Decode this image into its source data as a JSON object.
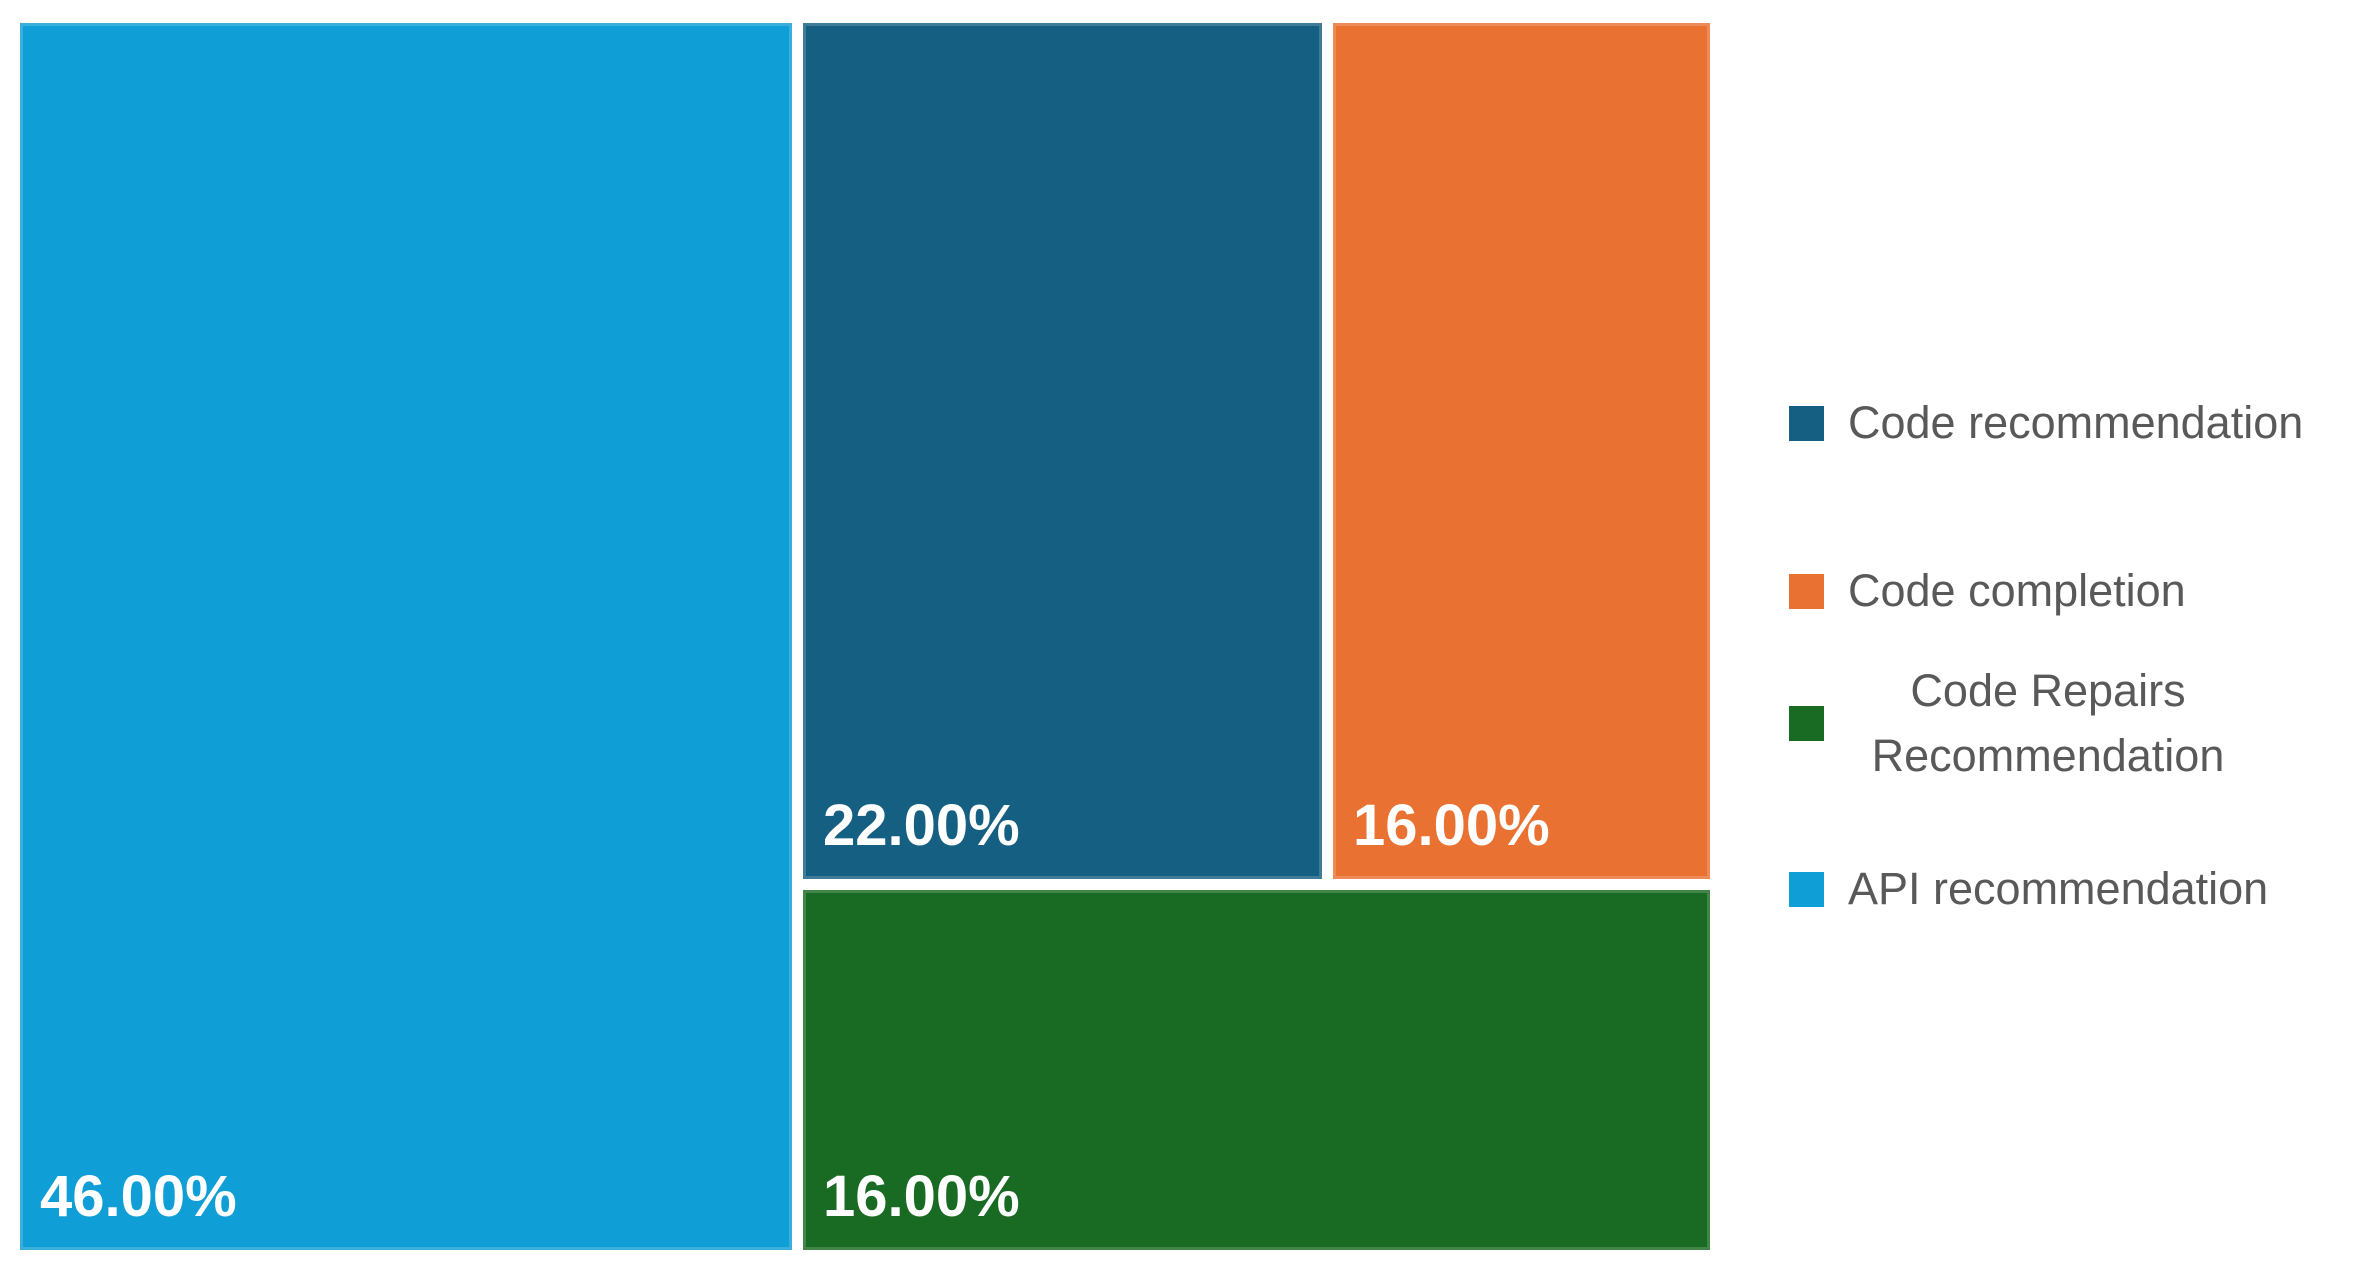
{
  "chart_data": {
    "type": "treemap",
    "title": "",
    "items": [
      {
        "label": "API recommendation",
        "value": 46,
        "display": "46.00%",
        "color": "#0F9ED5"
      },
      {
        "label": "Code recommendation",
        "value": 22,
        "display": "22.00%",
        "color": "#156082"
      },
      {
        "label": "Code completion",
        "value": 16,
        "display": "16.00%",
        "color": "#E97132"
      },
      {
        "label": "Code Repairs Recommendation",
        "value": 16,
        "display": "16.00%",
        "color": "#196B24"
      }
    ],
    "value_unit": "percent",
    "data_labels": "inside-bottom-left",
    "legend_position": "right"
  },
  "legend": {
    "items": [
      {
        "label": "Code recommendation",
        "color": "#156082"
      },
      {
        "label": "Code completion",
        "color": "#E97132"
      },
      {
        "label": "Code Repairs Recommendation",
        "color": "#196B24"
      },
      {
        "label": "API recommendation",
        "color": "#0F9ED5"
      }
    ]
  },
  "colors": {
    "background": "#FFFFFF",
    "tile_label_text": "#FFFFFF",
    "legend_text": "#595959"
  }
}
